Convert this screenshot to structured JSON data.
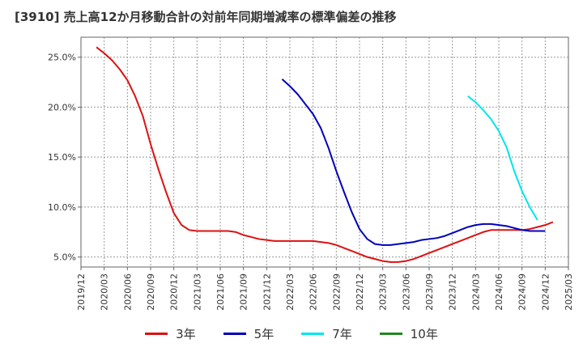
{
  "chart_data": {
    "type": "line",
    "title": "[3910]  売上高12か月移動合計の対前年同期増減率の標準偏差の推移",
    "xlabel": "",
    "ylabel": "",
    "ylim": [
      4.0,
      27.0
    ],
    "yticks": [
      5.0,
      10.0,
      15.0,
      20.0,
      25.0
    ],
    "ytick_labels": [
      "5.0%",
      "10.0%",
      "15.0%",
      "20.0%",
      "25.0%"
    ],
    "xticks": [
      "2019/12",
      "2020/03",
      "2020/06",
      "2020/09",
      "2020/12",
      "2021/03",
      "2021/06",
      "2021/09",
      "2021/12",
      "2022/03",
      "2022/06",
      "2022/09",
      "2022/12",
      "2023/03",
      "2023/06",
      "2023/09",
      "2023/12",
      "2024/03",
      "2024/06",
      "2024/09",
      "2024/12",
      "2025/03"
    ],
    "grid": true,
    "legend_position": "bottom",
    "series": [
      {
        "name": "3年",
        "color": "#dd1111",
        "start": "2020/02",
        "values": [
          26.0,
          25.4,
          24.7,
          23.8,
          22.7,
          21.1,
          19.1,
          16.3,
          13.8,
          11.5,
          9.4,
          8.2,
          7.7,
          7.6,
          7.6,
          7.6,
          7.6,
          7.6,
          7.5,
          7.2,
          7.0,
          6.8,
          6.7,
          6.6,
          6.6,
          6.6,
          6.6,
          6.6,
          6.6,
          6.5,
          6.4,
          6.2,
          5.9,
          5.6,
          5.3,
          5.0,
          4.8,
          4.6,
          4.5,
          4.5,
          4.6,
          4.8,
          5.1,
          5.4,
          5.7,
          6.0,
          6.3,
          6.6,
          6.9,
          7.2,
          7.5,
          7.7,
          7.7,
          7.7,
          7.7,
          7.7,
          7.8,
          8.0,
          8.2,
          8.5
        ]
      },
      {
        "name": "5年",
        "color": "#0000bb",
        "start": "2022/02",
        "values": [
          22.8,
          22.1,
          21.3,
          20.3,
          19.3,
          17.9,
          15.9,
          13.6,
          11.5,
          9.5,
          7.8,
          6.8,
          6.3,
          6.2,
          6.2,
          6.3,
          6.4,
          6.5,
          6.7,
          6.8,
          6.9,
          7.1,
          7.4,
          7.7,
          8.0,
          8.2,
          8.3,
          8.3,
          8.2,
          8.1,
          7.9,
          7.7,
          7.6,
          7.6,
          7.6
        ]
      },
      {
        "name": "7年",
        "color": "#00e5ee",
        "start": "2024/02",
        "values": [
          21.1,
          20.5,
          19.7,
          18.8,
          17.6,
          16.0,
          13.6,
          11.6,
          10.0,
          8.7
        ]
      },
      {
        "name": "10年",
        "color": "#228822",
        "start": "",
        "values": []
      }
    ]
  }
}
